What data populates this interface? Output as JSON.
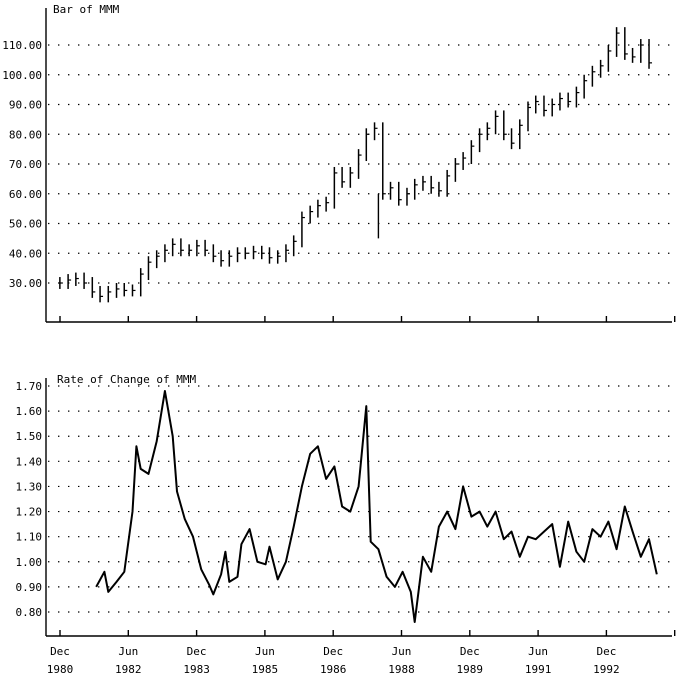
{
  "chart_data": [
    {
      "type": "bar",
      "title": "Bar of MMM",
      "ylim": [
        16,
        112
      ],
      "yticks": [
        "30.00",
        "40.00",
        "50.00",
        "60.00",
        "70.00",
        "80.00",
        "90.00",
        "100.00",
        "110.00"
      ],
      "grid": "dotted",
      "series": [
        {
          "values": [
            [
              1981.0,
              30.0
            ],
            [
              1981.17,
              31.0
            ],
            [
              1981.33,
              31.5
            ],
            [
              1981.5,
              30.0
            ],
            [
              1981.67,
              27.0
            ],
            [
              1981.83,
              25.5
            ],
            [
              1982.0,
              27.0
            ],
            [
              1982.17,
              28.0
            ],
            [
              1982.33,
              27.5
            ],
            [
              1982.5,
              27.5
            ],
            [
              1982.67,
              33.0
            ],
            [
              1982.83,
              37.0
            ],
            [
              1983.0,
              39.0
            ],
            [
              1983.17,
              41.0
            ],
            [
              1983.33,
              43.0
            ],
            [
              1983.5,
              41.0
            ],
            [
              1983.67,
              41.0
            ],
            [
              1983.83,
              42.5
            ],
            [
              1984.0,
              41.0
            ],
            [
              1984.17,
              39.0
            ],
            [
              1984.33,
              37.5
            ],
            [
              1984.5,
              39.0
            ],
            [
              1984.67,
              40.0
            ],
            [
              1984.83,
              40.0
            ],
            [
              1985.0,
              40.5
            ],
            [
              1985.17,
              40.0
            ],
            [
              1985.33,
              38.5
            ],
            [
              1985.5,
              39.0
            ],
            [
              1985.67,
              41.0
            ],
            [
              1985.83,
              44.0
            ],
            [
              1986.0,
              52.0
            ],
            [
              1986.17,
              54.0
            ],
            [
              1986.33,
              56.0
            ],
            [
              1986.5,
              57.0
            ],
            [
              1986.67,
              67.0
            ],
            [
              1986.83,
              64.0
            ],
            [
              1987.0,
              67.0
            ],
            [
              1987.17,
              73.0
            ],
            [
              1987.33,
              80.0
            ],
            [
              1987.5,
              82.0
            ],
            [
              1987.67,
              60.0
            ],
            [
              1987.83,
              62.0
            ],
            [
              1988.0,
              58.0
            ],
            [
              1988.17,
              60.0
            ],
            [
              1988.33,
              63.0
            ],
            [
              1988.5,
              64.0
            ],
            [
              1988.67,
              62.0
            ],
            [
              1988.83,
              61.0
            ],
            [
              1989.0,
              66.0
            ],
            [
              1989.17,
              70.0
            ],
            [
              1989.33,
              72.0
            ],
            [
              1989.5,
              76.0
            ],
            [
              1989.67,
              80.0
            ],
            [
              1989.83,
              82.0
            ],
            [
              1990.0,
              86.0
            ],
            [
              1990.17,
              80.0
            ],
            [
              1990.33,
              77.0
            ],
            [
              1990.5,
              83.0
            ],
            [
              1990.67,
              89.0
            ],
            [
              1990.83,
              91.0
            ],
            [
              1991.0,
              88.0
            ],
            [
              1991.17,
              90.0
            ],
            [
              1991.33,
              92.0
            ],
            [
              1991.5,
              91.0
            ],
            [
              1991.67,
              94.0
            ],
            [
              1991.83,
              98.0
            ],
            [
              1992.0,
              101.0
            ],
            [
              1992.17,
              103.0
            ],
            [
              1992.33,
              108.0
            ],
            [
              1992.5,
              114.0
            ],
            [
              1992.67,
              107.0
            ],
            [
              1992.83,
              106.0
            ],
            [
              1993.0,
              110.0
            ],
            [
              1993.17,
              104.0
            ]
          ]
        }
      ]
    },
    {
      "type": "line",
      "title": "Rate of Change of MMM",
      "ylim": [
        0.73,
        1.71
      ],
      "yticks": [
        "0.80",
        "0.90",
        "1.00",
        "1.10",
        "1.20",
        "1.30",
        "1.40",
        "1.50",
        "1.60",
        "1.70"
      ],
      "grid": "dotted",
      "x_labels": [
        {
          "month": "Dec",
          "year": "1980"
        },
        {
          "month": "Jun",
          "year": "1982"
        },
        {
          "month": "Dec",
          "year": "1983"
        },
        {
          "month": "Jun",
          "year": "1985"
        },
        {
          "month": "Dec",
          "year": "1986"
        },
        {
          "month": "Jun",
          "year": "1988"
        },
        {
          "month": "Dec",
          "year": "1989"
        },
        {
          "month": "Jun",
          "year": "1991"
        },
        {
          "month": "Dec",
          "year": "1992"
        }
      ],
      "series": [
        {
          "values": [
            [
              1981.75,
              0.9
            ],
            [
              1981.92,
              0.96
            ],
            [
              1982.0,
              0.88
            ],
            [
              1982.17,
              0.92
            ],
            [
              1982.33,
              0.96
            ],
            [
              1982.5,
              1.2
            ],
            [
              1982.58,
              1.46
            ],
            [
              1982.67,
              1.37
            ],
            [
              1982.83,
              1.35
            ],
            [
              1983.0,
              1.48
            ],
            [
              1983.17,
              1.68
            ],
            [
              1983.33,
              1.5
            ],
            [
              1983.42,
              1.28
            ],
            [
              1983.58,
              1.17
            ],
            [
              1983.75,
              1.1
            ],
            [
              1983.92,
              0.97
            ],
            [
              1984.08,
              0.91
            ],
            [
              1984.17,
              0.87
            ],
            [
              1984.33,
              0.95
            ],
            [
              1984.42,
              1.04
            ],
            [
              1984.5,
              0.92
            ],
            [
              1984.67,
              0.94
            ],
            [
              1984.75,
              1.07
            ],
            [
              1984.92,
              1.13
            ],
            [
              1985.08,
              1.0
            ],
            [
              1985.25,
              0.99
            ],
            [
              1985.33,
              1.06
            ],
            [
              1985.5,
              0.93
            ],
            [
              1985.67,
              1.0
            ],
            [
              1985.83,
              1.14
            ],
            [
              1986.0,
              1.3
            ],
            [
              1986.17,
              1.43
            ],
            [
              1986.33,
              1.46
            ],
            [
              1986.5,
              1.33
            ],
            [
              1986.67,
              1.38
            ],
            [
              1986.83,
              1.22
            ],
            [
              1987.0,
              1.2
            ],
            [
              1987.17,
              1.3
            ],
            [
              1987.33,
              1.62
            ],
            [
              1987.42,
              1.08
            ],
            [
              1987.58,
              1.05
            ],
            [
              1987.75,
              0.94
            ],
            [
              1987.92,
              0.9
            ],
            [
              1988.08,
              0.96
            ],
            [
              1988.25,
              0.88
            ],
            [
              1988.33,
              0.76
            ],
            [
              1988.5,
              1.02
            ],
            [
              1988.67,
              0.96
            ],
            [
              1988.83,
              1.14
            ],
            [
              1989.0,
              1.2
            ],
            [
              1989.17,
              1.13
            ],
            [
              1989.33,
              1.3
            ],
            [
              1989.5,
              1.18
            ],
            [
              1989.67,
              1.2
            ],
            [
              1989.83,
              1.14
            ],
            [
              1990.0,
              1.2
            ],
            [
              1990.17,
              1.09
            ],
            [
              1990.33,
              1.12
            ],
            [
              1990.5,
              1.02
            ],
            [
              1990.67,
              1.1
            ],
            [
              1990.83,
              1.09
            ],
            [
              1991.0,
              1.12
            ],
            [
              1991.17,
              1.15
            ],
            [
              1991.33,
              0.98
            ],
            [
              1991.5,
              1.16
            ],
            [
              1991.67,
              1.04
            ],
            [
              1991.83,
              1.0
            ],
            [
              1992.0,
              1.13
            ],
            [
              1992.17,
              1.1
            ],
            [
              1992.33,
              1.16
            ],
            [
              1992.5,
              1.05
            ],
            [
              1992.67,
              1.22
            ],
            [
              1992.83,
              1.12
            ],
            [
              1993.0,
              1.02
            ],
            [
              1993.17,
              1.09
            ],
            [
              1993.33,
              0.95
            ]
          ]
        }
      ]
    }
  ]
}
